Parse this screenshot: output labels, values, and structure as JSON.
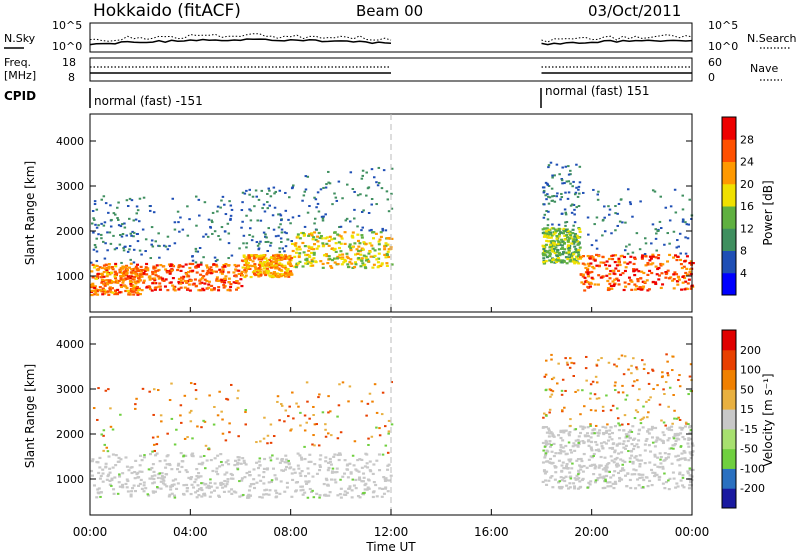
{
  "header": {
    "title": "Hokkaido (fitACF)",
    "beam": "Beam 00",
    "date": "03/Oct/2011"
  },
  "noise_panel": {
    "left_label": "N.Sky",
    "right_label": "N.Search",
    "left_ticks": [
      "10^5",
      "10^0"
    ],
    "right_ticks": [
      "10^5",
      "10^0"
    ]
  },
  "freq_panel": {
    "left_label_1": "Freq.",
    "left_label_2": "[MHz]",
    "right_label": "Nave",
    "left_ticks": [
      "18",
      "8"
    ],
    "right_ticks": [
      "60",
      "0"
    ]
  },
  "cpid_panel": {
    "label": "CPID",
    "segment_1": "normal (fast) -151",
    "segment_2": "normal (fast) 151"
  },
  "x_axis": {
    "label": "Time UT",
    "ticks": [
      "00:00",
      "04:00",
      "08:00",
      "12:00",
      "16:00",
      "20:00",
      "00:00"
    ]
  },
  "power_panel": {
    "ylabel": "Slant Range [km]",
    "y_ticks": [
      "1000",
      "2000",
      "3000",
      "4000"
    ],
    "cbar_label": "Power [dB]",
    "cbar_ticks": [
      "4",
      "8",
      "12",
      "16",
      "20",
      "24",
      "28"
    ]
  },
  "velocity_panel": {
    "ylabel": "Slant Range [km]",
    "y_ticks": [
      "1000",
      "2000",
      "3000",
      "4000"
    ],
    "cbar_label": "Velocity [m s⁻¹]",
    "cbar_ticks": [
      "200",
      "100",
      "50",
      "15",
      "-15",
      "-50",
      "-100",
      "-200"
    ]
  },
  "chart_data": {
    "type": "heatmap",
    "x_range_hours": [
      0,
      24
    ],
    "y_range_km": [
      200,
      4600
    ],
    "data_gap_hours": [
      12,
      18
    ],
    "power_colorscale": [
      "#0000ff",
      "#1f4fb5",
      "#3f8f5f",
      "#5fb040",
      "#f0e000",
      "#ff9900",
      "#ff5000",
      "#ee0000"
    ],
    "velocity_colorscale": [
      "#1a1aa0",
      "#2a70c0",
      "#6fcf3f",
      "#a7e06f",
      "#c8c8c8",
      "#e8b040",
      "#f08000",
      "#e84000",
      "#e00000"
    ],
    "power_bands": [
      {
        "t": [
          0,
          2
        ],
        "range_km": [
          600,
          1300
        ],
        "level_db": 24
      },
      {
        "t": [
          2,
          6
        ],
        "range_km": [
          700,
          1300
        ],
        "level_db": 26
      },
      {
        "t": [
          6,
          8
        ],
        "range_km": [
          1000,
          1500
        ],
        "level_db": 22
      },
      {
        "t": [
          8,
          12
        ],
        "range_km": [
          1200,
          2000
        ],
        "level_db": 18
      },
      {
        "t": [
          18,
          19.5
        ],
        "range_km": [
          1300,
          2100
        ],
        "level_db": 14
      },
      {
        "t": [
          19.5,
          24
        ],
        "range_km": [
          700,
          1500
        ],
        "level_db": 26
      }
    ],
    "velocity_bands": [
      {
        "t": [
          0,
          12
        ],
        "range_km": [
          600,
          1600
        ],
        "velocity": -10
      },
      {
        "t": [
          18,
          24
        ],
        "range_km": [
          800,
          2200
        ],
        "velocity": 5
      }
    ]
  }
}
